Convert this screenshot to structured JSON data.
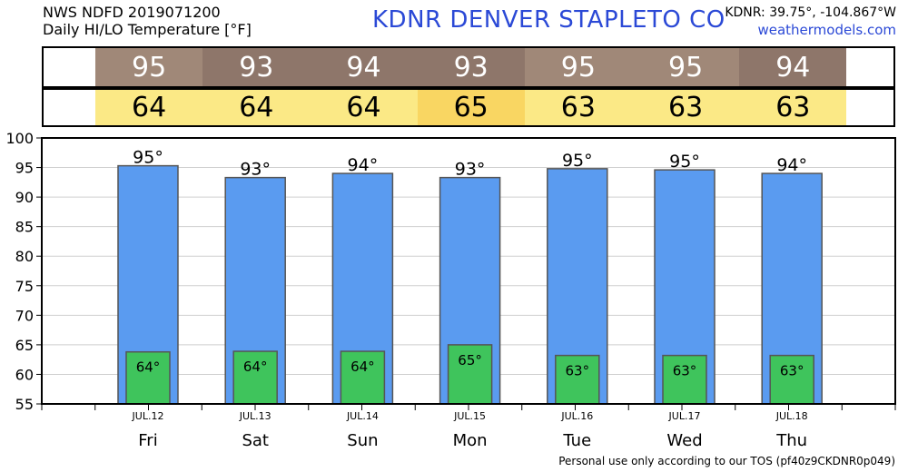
{
  "header": {
    "line1": "NWS NDFD 2019071200",
    "line2": "Daily HI/LO Temperature [°F]",
    "station": "KDNR   DENVER STAPLETO CO",
    "coords": "KDNR: 39.75°, -104.867°W",
    "site": "weathermodels.com"
  },
  "footer": "Personal use only according to our TOS (pf40z9CKDNR0p049)",
  "strips": {
    "hi_colors": [
      "#a08878",
      "#8e766a",
      "#8e766a",
      "#8e766a",
      "#a08878",
      "#a08878",
      "#8e766a"
    ],
    "lo_colors": [
      "#fbe986",
      "#fbe986",
      "#fbe986",
      "#f9d662",
      "#fbe986",
      "#fbe986",
      "#fbe986"
    ]
  },
  "chart_data": {
    "type": "bar",
    "categories": [
      "Fri",
      "Sat",
      "Sun",
      "Mon",
      "Tue",
      "Wed",
      "Thu"
    ],
    "dates": [
      "JUL.12",
      "JUL.13",
      "JUL.14",
      "JUL.15",
      "JUL.16",
      "JUL.17",
      "JUL.18"
    ],
    "series": [
      {
        "values": [
          95,
          93,
          94,
          93,
          95,
          95,
          94
        ],
        "color": "#5a9bf0"
      },
      {
        "values": [
          64,
          64,
          64,
          65,
          63,
          63,
          63
        ],
        "color": "#3fc45c"
      }
    ],
    "hi_labels": [
      "95°",
      "93°",
      "94°",
      "93°",
      "95°",
      "95°",
      "94°"
    ],
    "lo_labels": [
      "64°",
      "64°",
      "64°",
      "65°",
      "63°",
      "63°",
      "63°"
    ],
    "bar_tops": [
      95.3,
      93.3,
      94.0,
      93.3,
      94.8,
      94.6,
      94.0
    ],
    "lo_tops": [
      63.8,
      63.9,
      63.9,
      65.0,
      63.2,
      63.2,
      63.2
    ],
    "ylim": [
      55,
      100
    ],
    "yticks": [
      55,
      60,
      65,
      70,
      75,
      80,
      85,
      90,
      95,
      100
    ],
    "grid": true
  }
}
